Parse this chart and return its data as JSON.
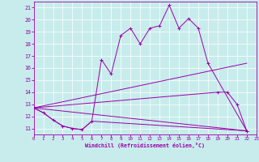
{
  "xlabel": "Windchill (Refroidissement éolien,°C)",
  "background_color": "#c8ecec",
  "line_color": "#9900aa",
  "xlim": [
    0,
    23
  ],
  "ylim": [
    10.5,
    21.5
  ],
  "xticks": [
    0,
    1,
    2,
    3,
    4,
    5,
    6,
    7,
    8,
    9,
    10,
    11,
    12,
    13,
    14,
    15,
    16,
    17,
    18,
    19,
    20,
    21,
    22,
    23
  ],
  "yticks": [
    11,
    12,
    13,
    14,
    15,
    16,
    17,
    18,
    19,
    20,
    21
  ],
  "s1x": [
    0,
    1,
    2,
    3,
    4,
    5,
    6,
    7,
    8,
    9,
    10,
    11,
    12,
    13,
    14,
    15,
    16,
    17,
    18,
    22
  ],
  "s1y": [
    12.7,
    12.3,
    11.7,
    11.2,
    11.0,
    10.9,
    11.6,
    16.7,
    15.5,
    18.7,
    19.3,
    18.0,
    19.3,
    19.5,
    21.2,
    19.3,
    20.1,
    19.3,
    16.4,
    10.8
  ],
  "s2x": [
    0,
    1,
    2,
    3,
    4,
    5,
    6,
    22
  ],
  "s2y": [
    12.7,
    12.3,
    11.7,
    11.2,
    11.0,
    10.9,
    11.6,
    10.8
  ],
  "s3x": [
    0,
    22
  ],
  "s3y": [
    12.7,
    16.4
  ],
  "s4x": [
    0,
    19,
    20,
    21,
    22
  ],
  "s4y": [
    12.7,
    14.0,
    14.0,
    13.0,
    10.8
  ],
  "s5x": [
    0,
    22
  ],
  "s5y": [
    12.7,
    10.8
  ]
}
